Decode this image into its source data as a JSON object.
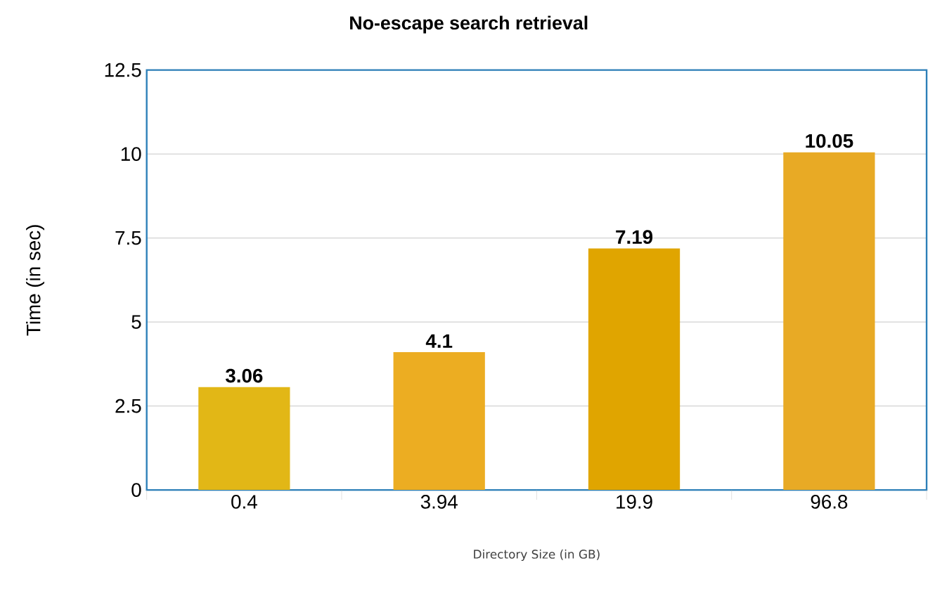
{
  "chart_data": {
    "type": "bar",
    "title": "No-escape search retrieval",
    "xlabel": "Directory Size (in GB)",
    "ylabel": "Time (in sec)",
    "categories": [
      "0.4",
      "3.94",
      "19.9",
      "96.8"
    ],
    "values": [
      3.06,
      4.1,
      7.19,
      10.05
    ],
    "colors": [
      "#e2b716",
      "#ecad22",
      "#e0a500",
      "#e8aa25"
    ],
    "ylim": [
      0,
      12.5
    ],
    "yticks": [
      0,
      2.5,
      5,
      7.5,
      10,
      12.5
    ],
    "grid": "y",
    "data_labels": true
  }
}
